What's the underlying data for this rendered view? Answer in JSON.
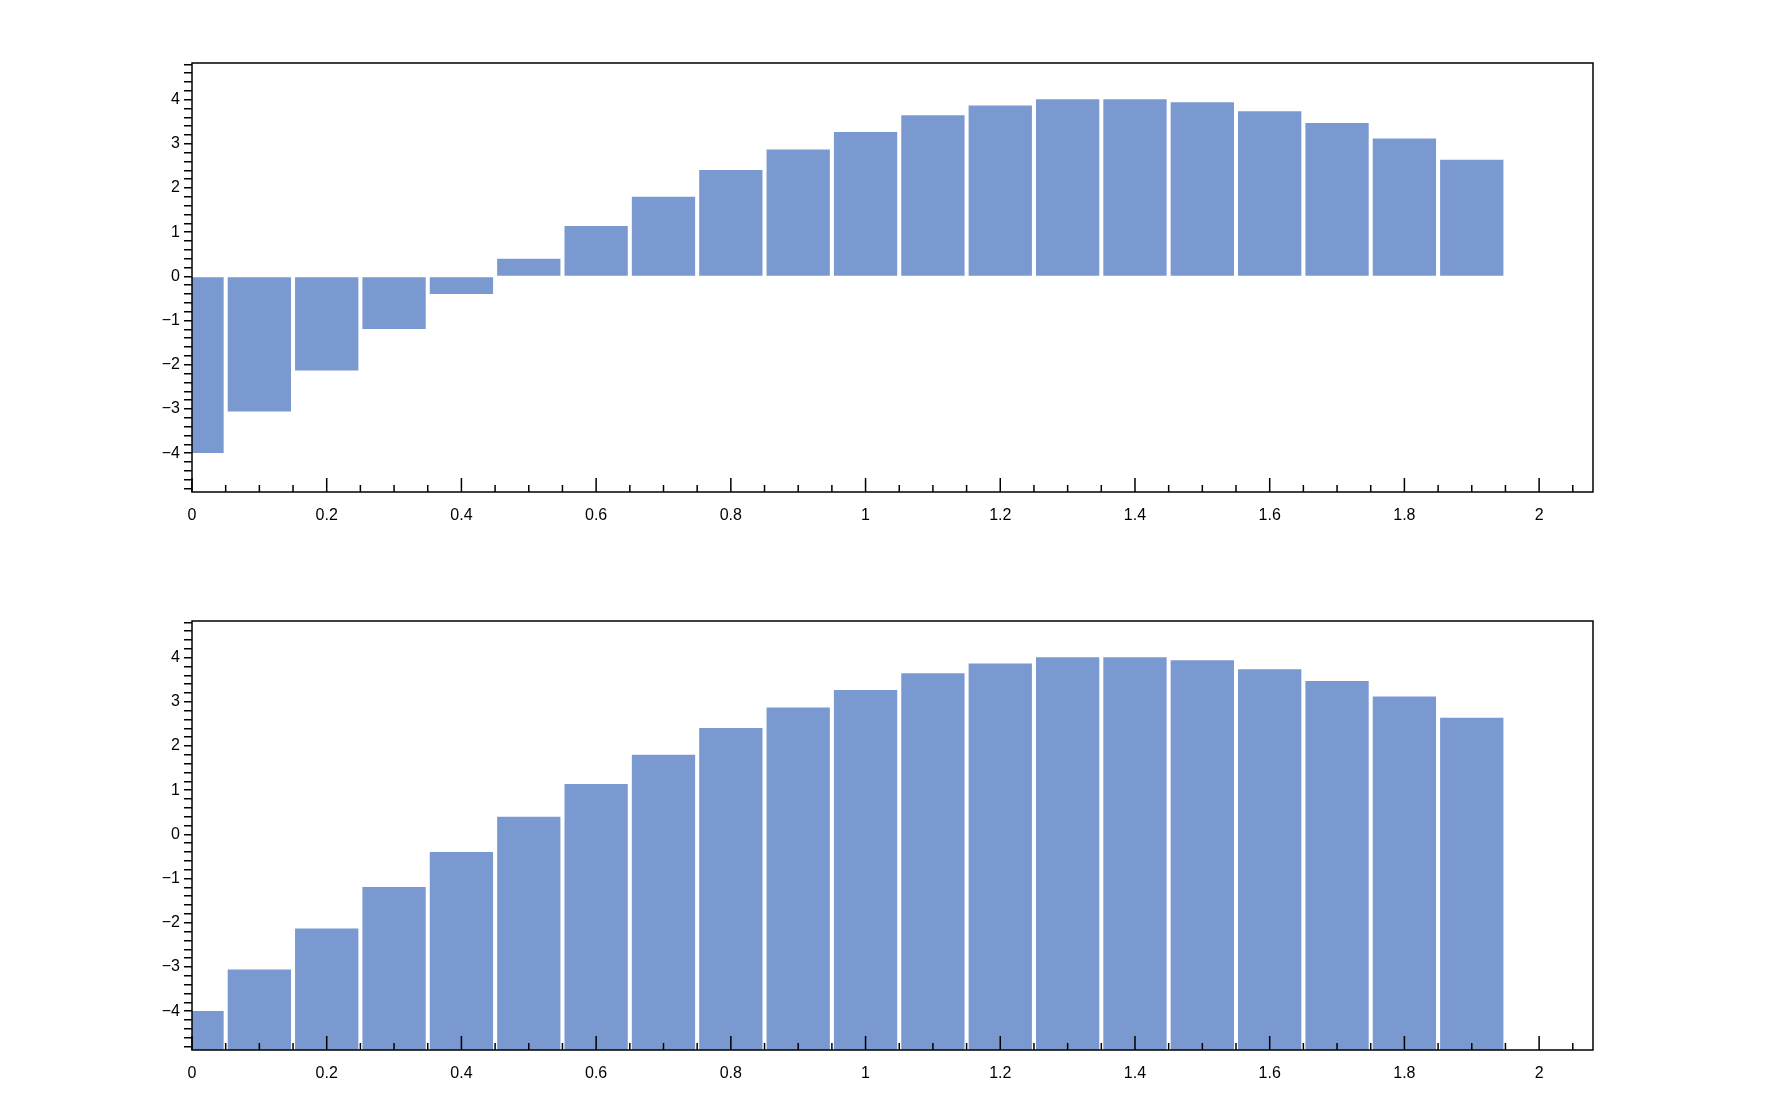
{
  "chart_data": [
    {
      "type": "bar",
      "x": [
        0,
        0.1,
        0.2,
        0.3,
        0.4,
        0.5,
        0.6,
        0.7,
        0.8,
        0.9,
        1,
        1.1,
        1.2,
        1.3,
        1.4,
        1.5,
        1.6,
        1.7,
        1.8,
        1.9
      ],
      "values": [
        -4.0,
        -3.06,
        -2.13,
        -1.19,
        -0.4,
        0.4,
        1.14,
        1.8,
        2.41,
        2.87,
        3.27,
        3.65,
        3.87,
        4.01,
        4.01,
        3.94,
        3.74,
        3.47,
        3.12,
        2.64
      ],
      "color": "#7b99d1",
      "xlim": [
        0,
        2.08
      ],
      "ylim": [
        -4.88,
        4.83
      ],
      "xticks": [
        0,
        {
          "value": 0.05,
          "label": null
        },
        {
          "value": 0.1,
          "label": null
        },
        {
          "value": 0.15,
          "label": null
        },
        0.2,
        {
          "value": 0.25,
          "label": null
        },
        {
          "value": 0.3,
          "label": null
        },
        {
          "value": 0.35,
          "label": null
        },
        0.4,
        {
          "value": 0.45,
          "label": null
        },
        {
          "value": 0.5,
          "label": null
        },
        {
          "value": 0.55,
          "label": null
        },
        0.6,
        {
          "value": 0.65,
          "label": null
        },
        {
          "value": 0.7,
          "label": null
        },
        {
          "value": 0.75,
          "label": null
        },
        0.8,
        {
          "value": 0.85,
          "label": null
        },
        {
          "value": 0.9,
          "label": null
        },
        {
          "value": 0.95,
          "label": null
        },
        1,
        {
          "value": 1.05,
          "label": null
        },
        {
          "value": 1.1,
          "label": null
        },
        {
          "value": 1.15,
          "label": null
        },
        1.2,
        {
          "value": 1.25,
          "label": null
        },
        {
          "value": 1.3,
          "label": null
        },
        {
          "value": 1.35,
          "label": null
        },
        1.4,
        {
          "value": 1.45,
          "label": null
        },
        {
          "value": 1.5,
          "label": null
        },
        {
          "value": 1.55,
          "label": null
        },
        1.6,
        {
          "value": 1.65,
          "label": null
        },
        {
          "value": 1.7,
          "label": null
        },
        {
          "value": 1.75,
          "label": null
        },
        1.8,
        {
          "value": 1.85,
          "label": null
        },
        {
          "value": 1.9,
          "label": null
        },
        {
          "value": 1.95,
          "label": null
        },
        2,
        {
          "value": 2.05,
          "label": null
        }
      ],
      "yticks": [
        {
          "value": -4.8,
          "label": null
        },
        {
          "value": -4.6,
          "label": null
        },
        {
          "value": -4.4,
          "label": null
        },
        {
          "value": -4.2,
          "label": null
        },
        {
          "value": -4,
          "label": "−4"
        },
        {
          "value": -3.8,
          "label": null
        },
        {
          "value": -3.6,
          "label": null
        },
        {
          "value": -3.4,
          "label": null
        },
        {
          "value": -3.2,
          "label": null
        },
        {
          "value": -3,
          "label": "−3"
        },
        {
          "value": -2.8,
          "label": null
        },
        {
          "value": -2.6,
          "label": null
        },
        {
          "value": -2.4,
          "label": null
        },
        {
          "value": -2.2,
          "label": null
        },
        {
          "value": -2,
          "label": "−2"
        },
        {
          "value": -1.8,
          "label": null
        },
        {
          "value": -1.6,
          "label": null
        },
        {
          "value": -1.4,
          "label": null
        },
        {
          "value": -1.2,
          "label": null
        },
        {
          "value": -1,
          "label": "−1"
        },
        {
          "value": -0.8,
          "label": null
        },
        {
          "value": -0.6,
          "label": null
        },
        {
          "value": -0.4,
          "label": null
        },
        {
          "value": -0.2,
          "label": null
        },
        0,
        {
          "value": 0.2,
          "label": null
        },
        {
          "value": 0.4,
          "label": null
        },
        {
          "value": 0.6,
          "label": null
        },
        {
          "value": 0.8,
          "label": null
        },
        1,
        {
          "value": 1.2,
          "label": null
        },
        {
          "value": 1.4,
          "label": null
        },
        {
          "value": 1.6,
          "label": null
        },
        {
          "value": 1.8,
          "label": null
        },
        2,
        {
          "value": 2.2,
          "label": null
        },
        {
          "value": 2.4,
          "label": null
        },
        {
          "value": 2.6,
          "label": null
        },
        {
          "value": 2.8,
          "label": null
        },
        3,
        {
          "value": 3.2,
          "label": null
        },
        {
          "value": 3.4,
          "label": null
        },
        {
          "value": 3.6,
          "label": null
        },
        {
          "value": 3.8,
          "label": null
        },
        4,
        {
          "value": 4.2,
          "label": null
        },
        {
          "value": 4.4,
          "label": null
        },
        {
          "value": 4.6,
          "label": null
        },
        {
          "value": 4.8,
          "label": null
        }
      ]
    },
    {
      "type": "bar",
      "x": [
        0,
        0.1,
        0.2,
        0.3,
        0.4,
        0.5,
        0.6,
        0.7,
        0.8,
        0.9,
        1,
        1.1,
        1.2,
        1.3,
        1.4,
        1.5,
        1.6,
        1.7,
        1.8,
        1.9
      ],
      "base": [
        -4.88,
        -4.88,
        -4.88,
        -4.88,
        -4.88,
        -4.88,
        -4.88,
        -4.88,
        -4.88,
        -4.88,
        -4.88,
        -4.88,
        -4.88,
        -4.88,
        -4.88,
        -4.88,
        -4.88,
        -4.88,
        -4.88,
        -4.88
      ],
      "values": [
        0.88,
        1.82,
        2.75,
        3.69,
        4.48,
        5.28,
        6.02,
        6.68,
        7.29,
        7.75,
        8.15,
        8.53,
        8.75,
        8.89,
        8.89,
        8.82,
        8.62,
        8.35,
        8.0,
        7.52
      ],
      "color": "#7b99d1",
      "xlim": [
        0,
        2.08
      ],
      "ylim": [
        -4.88,
        4.83
      ],
      "yticks": [
        {
          "value": -4.8,
          "label": null
        },
        {
          "value": -4.6,
          "label": null
        },
        {
          "value": -4.4,
          "label": null
        },
        {
          "value": -4.2,
          "label": null
        },
        {
          "value": -4,
          "label": "−4"
        },
        {
          "value": -3.8,
          "label": null
        },
        {
          "value": -3.6,
          "label": null
        },
        {
          "value": -3.4,
          "label": null
        },
        {
          "value": -3.2,
          "label": null
        },
        {
          "value": -3,
          "label": "−3"
        },
        {
          "value": -2.8,
          "label": null
        },
        {
          "value": -2.6,
          "label": null
        },
        {
          "value": -2.4,
          "label": null
        },
        {
          "value": -2.2,
          "label": null
        },
        {
          "value": -2,
          "label": "−2"
        },
        {
          "value": -1.8,
          "label": null
        },
        {
          "value": -1.6,
          "label": null
        },
        {
          "value": -1.4,
          "label": null
        },
        {
          "value": -1.2,
          "label": null
        },
        {
          "value": -1,
          "label": "−1"
        },
        {
          "value": -0.8,
          "label": null
        },
        {
          "value": -0.6,
          "label": null
        },
        {
          "value": -0.4,
          "label": null
        },
        {
          "value": -0.2,
          "label": null
        },
        0,
        {
          "value": 0.2,
          "label": null
        },
        {
          "value": 0.4,
          "label": null
        },
        {
          "value": 0.6,
          "label": null
        },
        {
          "value": 0.8,
          "label": null
        },
        1,
        {
          "value": 1.2,
          "label": null
        },
        {
          "value": 1.4,
          "label": null
        },
        {
          "value": 1.6,
          "label": null
        },
        {
          "value": 1.8,
          "label": null
        },
        2,
        {
          "value": 2.2,
          "label": null
        },
        {
          "value": 2.4,
          "label": null
        },
        {
          "value": 2.6,
          "label": null
        },
        {
          "value": 2.8,
          "label": null
        },
        3,
        {
          "value": 3.2,
          "label": null
        },
        {
          "value": 3.4,
          "label": null
        },
        {
          "value": 3.6,
          "label": null
        },
        {
          "value": 3.8,
          "label": null
        },
        4,
        {
          "value": 4.2,
          "label": null
        },
        {
          "value": 4.4,
          "label": null
        },
        {
          "value": 4.6,
          "label": null
        },
        {
          "value": 4.8,
          "label": null
        }
      ],
      "xticks": [
        0,
        {
          "value": 0.05,
          "label": null
        },
        {
          "value": 0.1,
          "label": null
        },
        {
          "value": 0.15,
          "label": null
        },
        0.2,
        {
          "value": 0.25,
          "label": null
        },
        {
          "value": 0.3,
          "label": null
        },
        {
          "value": 0.35,
          "label": null
        },
        0.4,
        {
          "value": 0.45,
          "label": null
        },
        {
          "value": 0.5,
          "label": null
        },
        {
          "value": 0.55,
          "label": null
        },
        0.6,
        {
          "value": 0.65,
          "label": null
        },
        {
          "value": 0.7,
          "label": null
        },
        {
          "value": 0.75,
          "label": null
        },
        0.8,
        {
          "value": 0.85,
          "label": null
        },
        {
          "value": 0.9,
          "label": null
        },
        {
          "value": 0.95,
          "label": null
        },
        1,
        {
          "value": 1.05,
          "label": null
        },
        {
          "value": 1.1,
          "label": null
        },
        {
          "value": 1.15,
          "label": null
        },
        1.2,
        {
          "value": 1.25,
          "label": null
        },
        {
          "value": 1.3,
          "label": null
        },
        {
          "value": 1.35,
          "label": null
        },
        1.4,
        {
          "value": 1.45,
          "label": null
        },
        {
          "value": 1.5,
          "label": null
        },
        {
          "value": 1.55,
          "label": null
        },
        1.6,
        {
          "value": 1.65,
          "label": null
        },
        {
          "value": 1.7,
          "label": null
        },
        {
          "value": 1.75,
          "label": null
        },
        1.8,
        {
          "value": 1.85,
          "label": null
        },
        {
          "value": 1.9,
          "label": null
        },
        {
          "value": 1.95,
          "label": null
        },
        2,
        {
          "value": 2.05,
          "label": null
        }
      ]
    }
  ]
}
